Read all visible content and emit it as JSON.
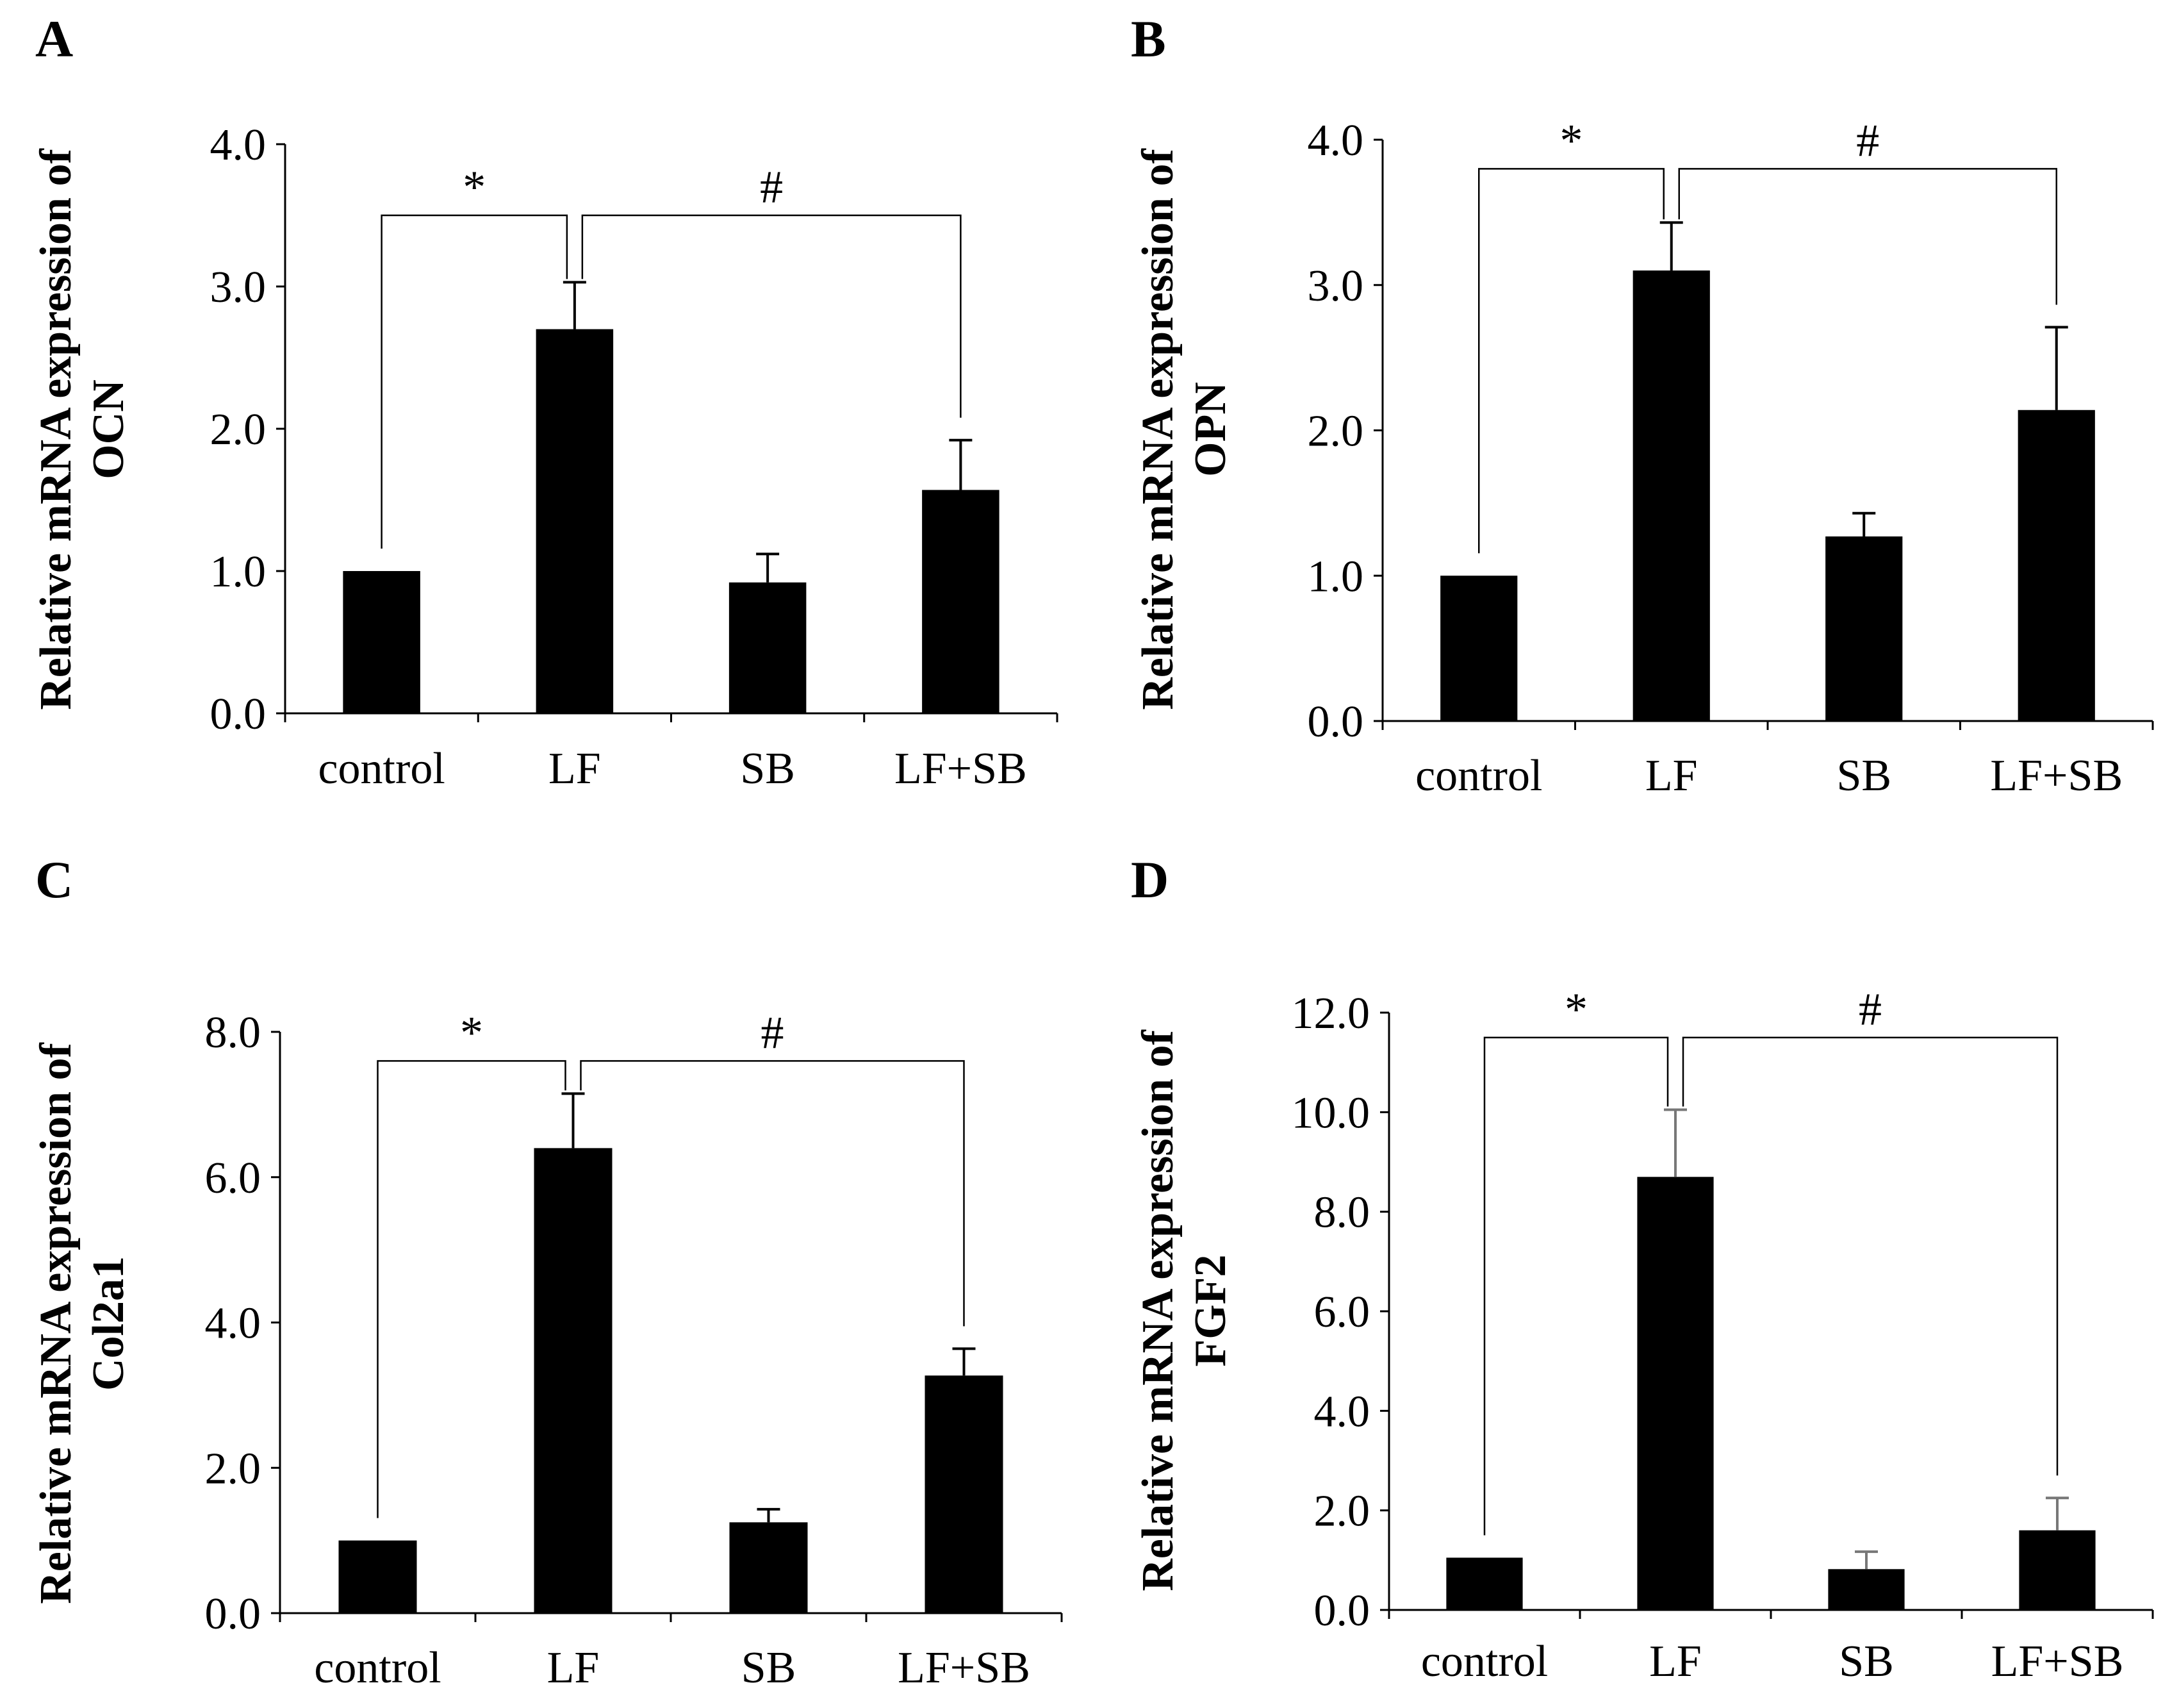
{
  "figure_title": "",
  "chart_data": [
    {
      "panel": "A",
      "type": "bar",
      "title": "",
      "xlabel": "",
      "ylabel_lines": [
        "Relative mRNA expression of",
        "OCN"
      ],
      "categories": [
        "control",
        "LF",
        "SB",
        "LF+SB"
      ],
      "values": [
        1.0,
        2.7,
        0.92,
        1.57
      ],
      "errors": [
        0.0,
        0.33,
        0.2,
        0.35
      ],
      "yticks": [
        "0.0",
        "1.0",
        "2.0",
        "3.0",
        "4.0"
      ],
      "ylim": [
        0,
        4
      ],
      "grid": false,
      "bar_color": "#000000",
      "significance": [
        {
          "from": 0,
          "to": 1,
          "level": 3.5,
          "symbol": "*"
        },
        {
          "from": 1,
          "to": 3,
          "level": 3.5,
          "symbol": "#"
        }
      ]
    },
    {
      "panel": "B",
      "type": "bar",
      "title": "",
      "xlabel": "",
      "ylabel_lines": [
        "Relative mRNA expression of",
        "OPN"
      ],
      "categories": [
        "control",
        "LF",
        "SB",
        "LF+SB"
      ],
      "values": [
        1.0,
        3.1,
        1.27,
        2.14
      ],
      "errors": [
        0.0,
        0.33,
        0.16,
        0.57
      ],
      "yticks": [
        "0.0",
        "1.0",
        "2.0",
        "3.0",
        "4.0"
      ],
      "ylim": [
        0,
        4
      ],
      "grid": false,
      "bar_color": "#000000",
      "significance": [
        {
          "from": 0,
          "to": 1,
          "level": 3.8,
          "symbol": "*"
        },
        {
          "from": 1,
          "to": 3,
          "level": 3.8,
          "symbol": "#"
        }
      ]
    },
    {
      "panel": "C",
      "type": "bar",
      "title": "",
      "xlabel": "",
      "ylabel_lines": [
        "Relative mRNA expression of",
        "Col2a1"
      ],
      "categories": [
        "control",
        "LF",
        "SB",
        "LF+SB"
      ],
      "values": [
        1.0,
        6.4,
        1.25,
        3.27
      ],
      "errors": [
        0.0,
        0.75,
        0.18,
        0.37
      ],
      "yticks": [
        "0.0",
        "2.0",
        "4.0",
        "6.0",
        "8.0"
      ],
      "ylim": [
        0,
        8
      ],
      "grid": false,
      "bar_color": "#000000",
      "significance": [
        {
          "from": 0,
          "to": 1,
          "level": 7.6,
          "symbol": "*"
        },
        {
          "from": 1,
          "to": 3,
          "level": 7.6,
          "symbol": "#"
        }
      ]
    },
    {
      "panel": "D",
      "type": "bar",
      "title": "",
      "xlabel": "",
      "ylabel_lines": [
        "Relative mRNA expression of",
        "FGF2"
      ],
      "categories": [
        "control",
        "LF",
        "SB",
        "LF+SB"
      ],
      "values": [
        1.05,
        8.7,
        0.82,
        1.6
      ],
      "errors": [
        0.0,
        1.35,
        0.35,
        0.65
      ],
      "yticks": [
        "0.0",
        "2.0",
        "4.0",
        "6.0",
        "8.0",
        "10.0",
        "12.0"
      ],
      "ylim": [
        0,
        12
      ],
      "grid": false,
      "bar_color": "#000000",
      "significance": [
        {
          "from": 0,
          "to": 1,
          "level": 11.5,
          "symbol": "*"
        },
        {
          "from": 1,
          "to": 3,
          "level": 11.5,
          "symbol": "#"
        }
      ]
    }
  ]
}
